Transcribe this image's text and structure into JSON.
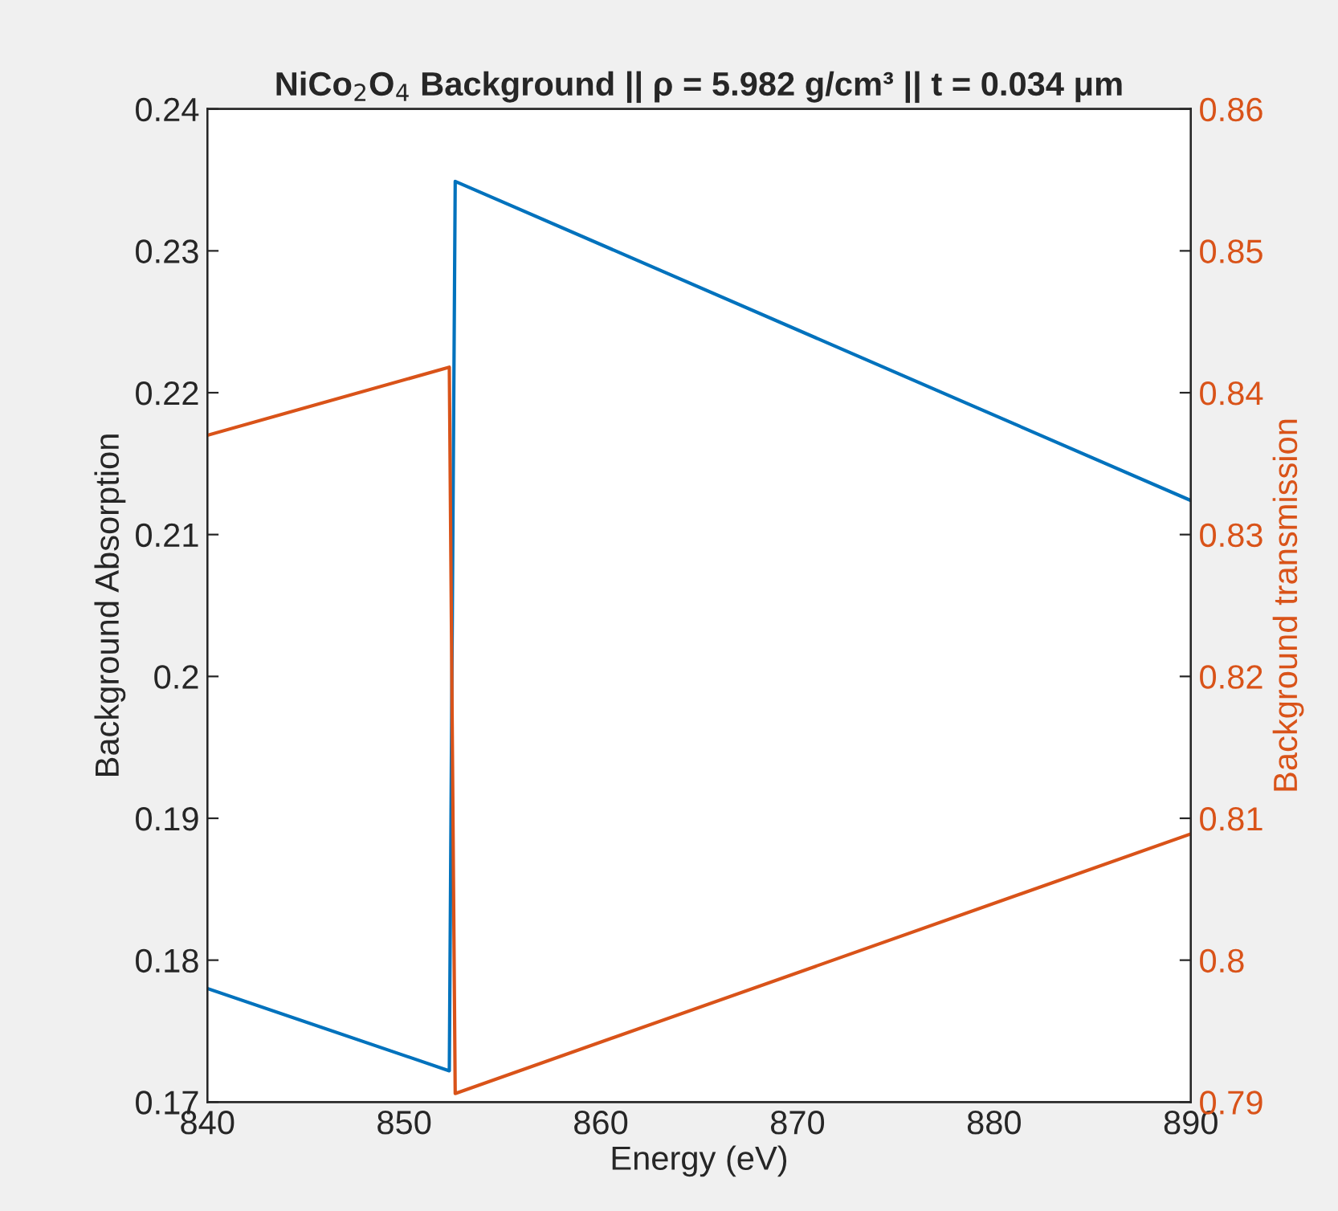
{
  "chart_data": {
    "type": "line",
    "title": "NiCo$_{2}$O$_{4}$ Background || ρ = 5.982 g/cm³ || t = 0.034 μm",
    "xlabel": "Energy (eV)",
    "ylabel": "Background Absorption",
    "y2label": "Background transmission",
    "series": [
      {
        "color": "#0072bd",
        "x": [
          840,
          852.3,
          852.6,
          890
        ],
        "values": [
          0.178,
          0.1722,
          0.2349,
          0.2124
        ]
      },
      {
        "color": "#d95319",
        "axis": "y2",
        "x": [
          840,
          852.3,
          852.6,
          890
        ],
        "values": [
          0.837,
          0.8418,
          0.7906,
          0.8089
        ]
      }
    ],
    "xlim": [
      840,
      890
    ],
    "xticks": [
      840,
      850,
      860,
      870,
      880,
      890
    ],
    "ylim": [
      0.17,
      0.24
    ],
    "yticks": [
      0.17,
      0.18,
      0.19,
      0.2,
      0.21,
      0.22,
      0.23,
      0.24
    ],
    "y2lim": [
      0.79,
      0.86
    ],
    "y2ticks": [
      0.79,
      0.8,
      0.81,
      0.82,
      0.83,
      0.84,
      0.85,
      0.86
    ],
    "grid": false,
    "legend": false
  }
}
